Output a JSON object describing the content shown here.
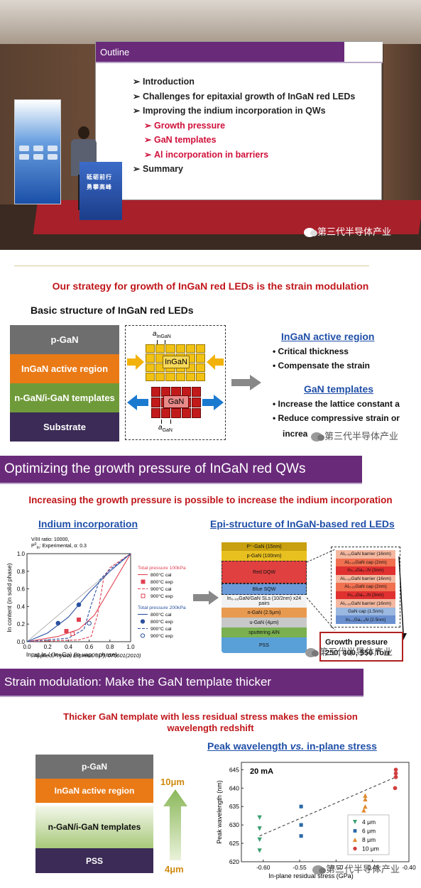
{
  "panel1": {
    "slide": {
      "title": "Outline",
      "items": [
        {
          "text": "Introduction",
          "sub": false
        },
        {
          "text": "Challenges for epitaxial growth of InGaN red LEDs",
          "sub": false
        },
        {
          "text": "Improving the indium incorporation in QWs",
          "sub": false
        },
        {
          "text": "Growth pressure",
          "sub": true
        },
        {
          "text": "GaN templates",
          "sub": true
        },
        {
          "text": "Al incorporation in barriers",
          "sub": true
        },
        {
          "text": "Summary",
          "sub": false
        }
      ]
    },
    "podium_text_1": "砥砺前行",
    "podium_text_2": "勇攀高峰",
    "watermark": "第三代半导体产业"
  },
  "panel2": {
    "heading": "Our strategy for growth of InGaN red LEDs is the strain modulation",
    "subheading": "Basic structure of InGaN red LEDs",
    "layers": [
      {
        "label": "p-GaN",
        "color": "#6e6e6e"
      },
      {
        "label": "InGaN active region",
        "color": "#ea7a16"
      },
      {
        "label": "n-GaN/i-GaN templates",
        "color": "#6f9a3a"
      },
      {
        "label": "Substrate",
        "color": "#3b2b56"
      }
    ],
    "lattice_top_label": "InGaN",
    "lattice_top_a": "a",
    "lattice_top_a_sub": "InGaN",
    "lattice_bottom_label": "GaN",
    "lattice_bottom_a": "a",
    "lattice_bottom_a_sub": "GaN",
    "active_title": "InGaN active region",
    "active_bullets": [
      "Critical thickness",
      "Compensate the strain"
    ],
    "template_title": "GaN templates",
    "template_bullets": [
      "Increase the lattice constant a",
      "Reduce compressive strain or"
    ],
    "template_bullet_partial": "increa",
    "watermark": "第三代半导体产业"
  },
  "panel3": {
    "header": "Optimizing the growth pressure of InGaN red QWs",
    "heading": "Increasing the growth pressure is possible to increase the indium incorporation",
    "left_title": "Indium incorporation",
    "right_title": "Epi-structure of InGaN-based red LEDs",
    "chart_data": {
      "type": "line",
      "annotation_1": "V/III ratio: 10000,",
      "annotation_2": "P",
      "annotation_2_sup": "0",
      "annotation_2_sub": "In",
      "annotation_2_rest": ": Experimental, α: 0.3",
      "xlabel": "Input In / (In+Ga) (in vapor phase)",
      "ylabel": "In content (in solid phase)",
      "xlim": [
        0.0,
        1.0
      ],
      "ylim": [
        0.0,
        1.0
      ],
      "xticks": [
        "0.0",
        "0.2",
        "0.4",
        "0.6",
        "0.8",
        "1.0"
      ],
      "yticks": [
        "0.0",
        "0.2",
        "0.4",
        "0.6",
        "0.8",
        "1.0"
      ],
      "legend_group_1": "Total pressure 100kPa",
      "legend_group_2": "Total pressure 200kPa",
      "series": [
        {
          "name": "800°C cal",
          "group": 1,
          "style": "solid",
          "color": "#e04050",
          "points": [
            [
              0,
              0
            ],
            [
              0.3,
              0.06
            ],
            [
              0.5,
              0.14
            ],
            [
              0.65,
              0.3
            ],
            [
              0.8,
              0.6
            ],
            [
              1,
              1
            ]
          ]
        },
        {
          "name": "900°C cal",
          "group": 1,
          "style": "dashed",
          "color": "#e04050",
          "points": [
            [
              0,
              0
            ],
            [
              0.5,
              0.02
            ],
            [
              0.62,
              0.06
            ],
            [
              0.68,
              0.3
            ],
            [
              0.74,
              0.72
            ],
            [
              0.8,
              0.84
            ],
            [
              1,
              1
            ]
          ]
        },
        {
          "name": "800°C cal",
          "group": 2,
          "style": "solid",
          "color": "#2a50a0",
          "points": [
            [
              0,
              0
            ],
            [
              0.2,
              0.1
            ],
            [
              0.4,
              0.28
            ],
            [
              0.6,
              0.56
            ],
            [
              0.8,
              0.8
            ],
            [
              1,
              1
            ]
          ]
        },
        {
          "name": "900°C cal",
          "group": 2,
          "style": "dashed",
          "color": "#2a50a0",
          "points": [
            [
              0,
              0
            ],
            [
              0.4,
              0.04
            ],
            [
              0.55,
              0.14
            ],
            [
              0.62,
              0.42
            ],
            [
              0.7,
              0.7
            ],
            [
              0.8,
              0.82
            ],
            [
              1,
              1
            ]
          ]
        }
      ],
      "markers": [
        {
          "name": "800°C exp",
          "group": 1,
          "symbol": "square-filled",
          "color": "#e04050",
          "points": [
            [
              0.5,
              0.25
            ],
            [
              0.38,
              0.12
            ]
          ]
        },
        {
          "name": "900°C exp",
          "group": 1,
          "symbol": "square-open",
          "color": "#e04050",
          "points": [
            [
              0.44,
              0.09
            ]
          ]
        },
        {
          "name": "800°C exp",
          "group": 2,
          "symbol": "circle-filled",
          "color": "#2a50a0",
          "points": [
            [
              0.3,
              0.21
            ],
            [
              0.5,
              0.42
            ]
          ]
        },
        {
          "name": "900°C exp",
          "group": 2,
          "symbol": "circle-open",
          "color": "#2a50a0",
          "points": [
            [
              0.6,
              0.21
            ]
          ]
        }
      ],
      "citation": "Applied Physics Express, 3(7), 075601(2010)"
    },
    "epi_layers": [
      {
        "label": "P⁺-GaN (15nm)",
        "color": "#c8a010",
        "h": 12
      },
      {
        "label": "p-GaN (100nm)",
        "color": "#e8c020",
        "h": 14
      },
      {
        "label": "Red DQW",
        "color": "#e04040",
        "h": 32,
        "dashed": true
      },
      {
        "label": "Blue SQW",
        "color": "#6a9ad8",
        "h": 16,
        "dashed": true
      },
      {
        "label": "In₀.₀₆GaN/GaN SLs (10/2nm) x24 pairs",
        "color": "#f2f2f2",
        "h": 18
      },
      {
        "label": "n-GaN (2.5μm)",
        "color": "#e89a50",
        "h": 14
      },
      {
        "label": "u-GaN (4μm)",
        "color": "#c8c8c8",
        "h": 14
      },
      {
        "label": "sputtering AlN",
        "color": "#7ab050",
        "h": 14
      },
      {
        "label": "PSS",
        "color": "#5aa0d8",
        "h": 22
      }
    ],
    "detail_layers": [
      {
        "label": "Al₀.₀₂GaN barrier (16nm)",
        "color": "#f4b8a0"
      },
      {
        "label": "Al₀.₀₁GaN cap (2nm)",
        "color": "#f07050"
      },
      {
        "label": "In₀.₃Ga₀.₇N (3nm)",
        "color": "#e03030"
      },
      {
        "label": "Al₀.₀₂GaN barrier (16nm)",
        "color": "#f4b8a0"
      },
      {
        "label": "Al₀.₀₁GaN cap (2nm)",
        "color": "#f07050"
      },
      {
        "label": "In₀.₃Ga₀.₇N (3nm)",
        "color": "#e03030"
      },
      {
        "label": "Al₀.₀₂GaN barrier (16nm)",
        "color": "#f4b8a0"
      },
      {
        "label": "GaN cap (1.5nm)",
        "color": "#9ab8e0"
      },
      {
        "label": "In₀.₁Ga₀.₉N (2.5nm)",
        "color": "#6a90d0"
      }
    ],
    "growth_title": "Growth pressure",
    "growth_values": "250, 400, 550 Torr",
    "watermark": "第三代半导体产业"
  },
  "panel4": {
    "header": "Strain modulation: Make the GaN template thicker",
    "heading_1": "Thicker GaN template with less residual stress makes the emission",
    "heading_2": "wavelength redshift",
    "layers": [
      {
        "label": "p-GaN",
        "color": "#707070"
      },
      {
        "label": "InGaN active region",
        "color": "#ea7a16"
      },
      {
        "label": "n-GaN/i-GaN templates",
        "gradient": true
      },
      {
        "label": "PSS",
        "color": "#3b2b56"
      }
    ],
    "arrow_top": "10μm",
    "arrow_bottom": "4μm",
    "chart_title_1": "Peak wavelength",
    "chart_title_vs": "vs.",
    "chart_title_2": "in-plane stress",
    "chart_data": {
      "type": "scatter",
      "annotation": "20 mA",
      "xlabel": "In-plane residual stress (GPa)",
      "ylabel": "Peak wavelength (nm)",
      "xlim": [
        -0.63,
        -0.4
      ],
      "ylim": [
        620,
        647
      ],
      "xticks": [
        "-0.60",
        "-0.55",
        "-0.50",
        "-0.45",
        "-0.40"
      ],
      "yticks": [
        "620",
        "625",
        "630",
        "635",
        "640",
        "645"
      ],
      "series": [
        {
          "name": "4 μm",
          "symbol": "triangle-down",
          "color": "#3aa070",
          "points": [
            [
              -0.605,
              632
            ],
            [
              -0.605,
              629
            ],
            [
              -0.605,
              626
            ],
            [
              -0.605,
              623
            ]
          ]
        },
        {
          "name": "6 μm",
          "symbol": "square",
          "color": "#2a6aa8",
          "points": [
            [
              -0.548,
              635
            ],
            [
              -0.548,
              630
            ],
            [
              -0.548,
              627
            ]
          ]
        },
        {
          "name": "8 μm",
          "symbol": "triangle-up",
          "color": "#e08a30",
          "points": [
            [
              -0.46,
              638
            ],
            [
              -0.46,
              637
            ],
            [
              -0.46,
              635
            ],
            [
              -0.462,
              634
            ]
          ]
        },
        {
          "name": "10 μm",
          "symbol": "circle",
          "color": "#d04040",
          "points": [
            [
              -0.418,
              645
            ],
            [
              -0.418,
              644
            ],
            [
              -0.418,
              643
            ],
            [
              -0.419,
              640
            ]
          ]
        }
      ],
      "trend": [
        [
          -0.605,
          627
        ],
        [
          -0.418,
          643
        ]
      ]
    },
    "watermark": "第三代半导体产业"
  }
}
